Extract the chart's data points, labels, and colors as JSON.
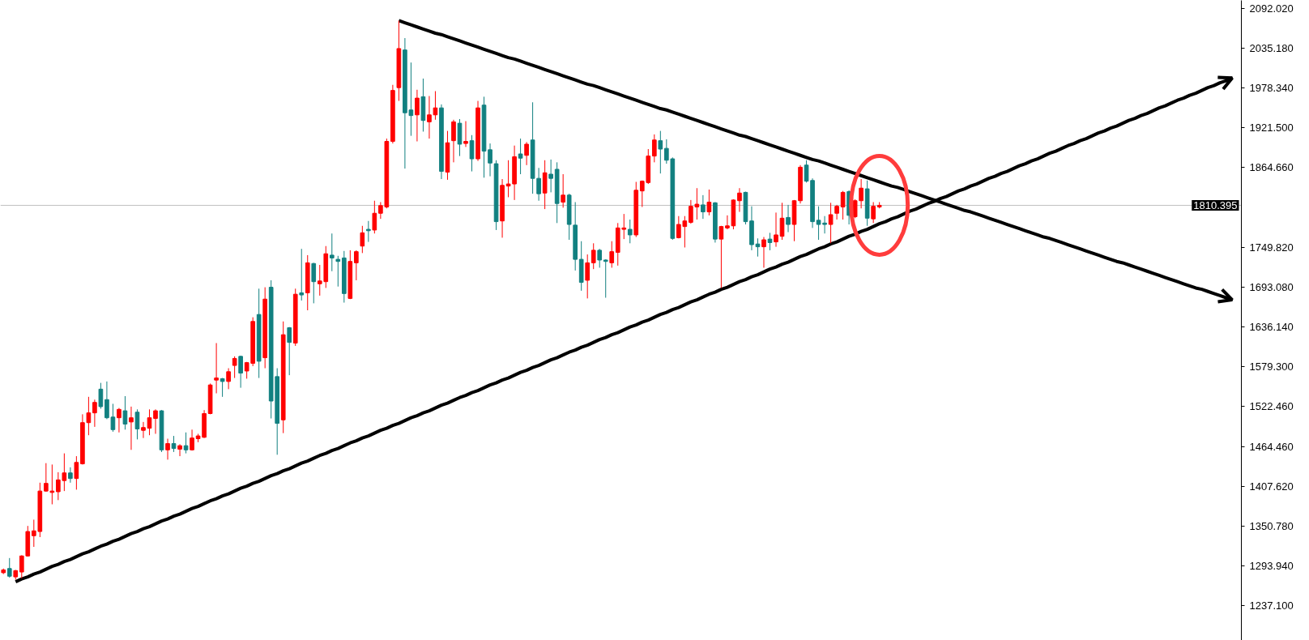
{
  "chart_data": {
    "type": "candlestick",
    "categories": [
      null,
      null,
      null,
      null,
      null,
      null,
      null,
      null,
      null,
      null,
      null,
      null,
      null,
      null,
      null,
      null,
      null,
      null,
      null,
      null,
      null,
      null,
      null,
      null,
      null,
      null,
      null,
      null,
      null,
      null,
      null,
      null,
      null,
      null,
      null,
      null,
      null,
      null,
      null,
      null,
      null,
      null,
      null,
      null,
      null,
      null,
      null,
      null,
      null,
      null,
      null,
      null,
      null,
      null,
      null,
      null,
      null,
      null,
      null,
      null,
      null,
      null,
      null,
      null,
      null,
      null,
      null,
      null,
      null,
      null,
      null,
      null,
      null,
      null,
      null,
      null,
      null,
      null,
      null,
      null,
      null,
      null,
      null,
      null,
      null,
      null,
      null,
      null,
      null,
      null,
      null,
      null,
      null,
      null,
      null,
      null,
      null,
      null,
      null,
      null,
      null,
      null,
      null,
      null,
      null,
      null,
      null,
      null,
      null,
      null,
      null,
      null,
      null,
      null,
      null,
      null,
      null,
      null,
      null,
      null,
      null,
      null,
      null,
      null,
      null,
      null,
      null,
      null,
      null,
      null,
      null,
      null,
      null,
      null,
      null,
      null,
      null,
      null,
      null,
      null,
      null,
      null,
      null,
      null,
      null,
      null,
      null,
      null,
      null,
      null,
      null,
      null,
      null,
      null,
      null,
      null,
      null,
      null,
      null,
      null,
      null,
      null,
      null,
      null,
      null,
      null,
      null,
      null,
      null,
      null,
      null,
      null,
      null,
      null,
      null,
      null,
      null,
      null,
      null,
      null,
      null,
      null,
      null,
      null,
      null,
      null,
      null,
      null,
      null,
      null,
      null,
      null,
      null,
      null,
      null,
      null,
      null,
      null,
      null,
      null,
      null,
      null,
      null,
      null
    ],
    "ohlc": [
      [
        1284,
        1290,
        1282,
        1288
      ],
      [
        1290,
        1305,
        1277,
        1279
      ],
      [
        1278,
        1288,
        1274,
        1287
      ],
      [
        1285,
        1309,
        1276,
        1308
      ],
      [
        1308,
        1351,
        1307,
        1343
      ],
      [
        1337,
        1360,
        1321,
        1344
      ],
      [
        1343,
        1413,
        1335,
        1401
      ],
      [
        1401,
        1441,
        1400,
        1412
      ],
      [
        1399,
        1439,
        1382,
        1401
      ],
      [
        1400,
        1428,
        1388,
        1417
      ],
      [
        1416,
        1455,
        1401,
        1427
      ],
      [
        1427,
        1435,
        1413,
        1419
      ],
      [
        1419,
        1451,
        1403,
        1442
      ],
      [
        1440,
        1511,
        1439,
        1499
      ],
      [
        1499,
        1536,
        1481,
        1513
      ],
      [
        1513,
        1532,
        1493,
        1528
      ],
      [
        1547,
        1556,
        1519,
        1522
      ],
      [
        1532,
        1558,
        1504,
        1506
      ],
      [
        1507,
        1526,
        1486,
        1489
      ],
      [
        1506,
        1520,
        1485,
        1518
      ],
      [
        1516,
        1537,
        1489,
        1497
      ],
      [
        1500,
        1522,
        1460,
        1506
      ],
      [
        1514,
        1518,
        1475,
        1490
      ],
      [
        1488,
        1500,
        1477,
        1492
      ],
      [
        1491,
        1518,
        1481,
        1506
      ],
      [
        1505,
        1518,
        1483,
        1516
      ],
      [
        1516,
        1517,
        1457,
        1460
      ],
      [
        1460,
        1476,
        1446,
        1469
      ],
      [
        1469,
        1480,
        1457,
        1462
      ],
      [
        1461,
        1468,
        1451,
        1466
      ],
      [
        1466,
        1485,
        1455,
        1460
      ],
      [
        1460,
        1489,
        1459,
        1477
      ],
      [
        1476,
        1483,
        1471,
        1480
      ],
      [
        1478,
        1517,
        1477,
        1512
      ],
      [
        1512,
        1555,
        1511,
        1553
      ],
      [
        1560,
        1613,
        1541,
        1563
      ],
      [
        1562,
        1563,
        1536,
        1558
      ],
      [
        1558,
        1577,
        1547,
        1572
      ],
      [
        1581,
        1594,
        1563,
        1591
      ],
      [
        1594,
        1595,
        1549,
        1570
      ],
      [
        1573,
        1586,
        1562,
        1585
      ],
      [
        1584,
        1650,
        1580,
        1644
      ],
      [
        1654,
        1691,
        1563,
        1587
      ],
      [
        1592,
        1693,
        1577,
        1676
      ],
      [
        1693,
        1703,
        1505,
        1530
      ],
      [
        1565,
        1577,
        1453,
        1498
      ],
      [
        1503,
        1644,
        1484,
        1625
      ],
      [
        1635,
        1636,
        1567,
        1614
      ],
      [
        1613,
        1691,
        1609,
        1683
      ],
      [
        1685,
        1748,
        1674,
        1682
      ],
      [
        1685,
        1739,
        1660,
        1728
      ],
      [
        1727,
        1728,
        1670,
        1701
      ],
      [
        1698,
        1725,
        1681,
        1702
      ],
      [
        1701,
        1752,
        1692,
        1741
      ],
      [
        1739,
        1770,
        1716,
        1735
      ],
      [
        1733,
        1738,
        1694,
        1730
      ],
      [
        1735,
        1745,
        1671,
        1684
      ],
      [
        1677,
        1746,
        1676,
        1730
      ],
      [
        1728,
        1746,
        1703,
        1744
      ],
      [
        1752,
        1781,
        1742,
        1771
      ],
      [
        1776,
        1788,
        1758,
        1774
      ],
      [
        1775,
        1817,
        1770,
        1799
      ],
      [
        1799,
        1815,
        1791,
        1810
      ],
      [
        1808,
        1906,
        1806,
        1902
      ],
      [
        1902,
        1983,
        1899,
        1975
      ],
      [
        1979,
        2075,
        1960,
        2035
      ],
      [
        2033,
        2050,
        1863,
        1943
      ],
      [
        1947,
        2015,
        1910,
        1939
      ],
      [
        1940,
        1976,
        1902,
        1964
      ],
      [
        1966,
        1992,
        1916,
        1932
      ],
      [
        1930,
        1967,
        1906,
        1940
      ],
      [
        1940,
        1974,
        1933,
        1950
      ],
      [
        1950,
        1955,
        1848,
        1859
      ],
      [
        1858,
        1917,
        1847,
        1900
      ],
      [
        1903,
        1933,
        1872,
        1930
      ],
      [
        1928,
        1934,
        1881,
        1898
      ],
      [
        1899,
        1931,
        1894,
        1902
      ],
      [
        1903,
        1911,
        1859,
        1877
      ],
      [
        1877,
        1960,
        1874,
        1950
      ],
      [
        1954,
        1966,
        1850,
        1888
      ],
      [
        1890,
        1899,
        1852,
        1871
      ],
      [
        1870,
        1875,
        1775,
        1787
      ],
      [
        1788,
        1848,
        1764,
        1839
      ],
      [
        1838,
        1875,
        1822,
        1841
      ],
      [
        1841,
        1896,
        1818,
        1880
      ],
      [
        1884,
        1906,
        1855,
        1878
      ],
      [
        1882,
        1901,
        1868,
        1898
      ],
      [
        1904,
        1958,
        1827,
        1849
      ],
      [
        1849,
        1864,
        1817,
        1827
      ],
      [
        1828,
        1875,
        1805,
        1857
      ],
      [
        1855,
        1876,
        1829,
        1849
      ],
      [
        1862,
        1872,
        1785,
        1813
      ],
      [
        1815,
        1855,
        1807,
        1825
      ],
      [
        1825,
        1827,
        1761,
        1783
      ],
      [
        1782,
        1815,
        1717,
        1733
      ],
      [
        1733,
        1759,
        1688,
        1700
      ],
      [
        1703,
        1740,
        1677,
        1728
      ],
      [
        1728,
        1756,
        1719,
        1746
      ],
      [
        1746,
        1748,
        1721,
        1732
      ],
      [
        1732,
        1733,
        1678,
        1730
      ],
      [
        1728,
        1759,
        1721,
        1744
      ],
      [
        1743,
        1785,
        1724,
        1778
      ],
      [
        1776,
        1798,
        1762,
        1778
      ],
      [
        1776,
        1790,
        1756,
        1768
      ],
      [
        1768,
        1844,
        1765,
        1832
      ],
      [
        1831,
        1846,
        1808,
        1845
      ],
      [
        1843,
        1891,
        1841,
        1881
      ],
      [
        1881,
        1912,
        1872,
        1904
      ],
      [
        1903,
        1917,
        1856,
        1891
      ],
      [
        1892,
        1905,
        1870,
        1875
      ],
      [
        1877,
        1879,
        1761,
        1763
      ],
      [
        1764,
        1795,
        1763,
        1783
      ],
      [
        1780,
        1795,
        1750,
        1788
      ],
      [
        1786,
        1818,
        1784,
        1809
      ],
      [
        1808,
        1835,
        1790,
        1812
      ],
      [
        1811,
        1825,
        1791,
        1801
      ],
      [
        1801,
        1833,
        1796,
        1815
      ],
      [
        1814,
        1815,
        1757,
        1762
      ],
      [
        1762,
        1781,
        1692,
        1780
      ],
      [
        1778,
        1796,
        1776,
        1781
      ],
      [
        1781,
        1819,
        1776,
        1818
      ],
      [
        1817,
        1835,
        1801,
        1828
      ],
      [
        1829,
        1830,
        1783,
        1787
      ],
      [
        1788,
        1809,
        1746,
        1754
      ],
      [
        1755,
        1763,
        1737,
        1751
      ],
      [
        1751,
        1765,
        1721,
        1761
      ],
      [
        1762,
        1771,
        1746,
        1757
      ],
      [
        1758,
        1800,
        1751,
        1768
      ],
      [
        1766,
        1814,
        1761,
        1792
      ],
      [
        1793,
        1811,
        1772,
        1783
      ],
      [
        1783,
        1818,
        1759,
        1817
      ],
      [
        1817,
        1868,
        1813,
        1865
      ],
      [
        1868,
        1875,
        1843,
        1845
      ],
      [
        1846,
        1849,
        1778,
        1787
      ],
      [
        1789,
        1809,
        1761,
        1783
      ],
      [
        1785,
        1795,
        1770,
        1783
      ],
      [
        1783,
        1814,
        1756,
        1797
      ],
      [
        1799,
        1811,
        1790,
        1809
      ],
      [
        1808,
        1831,
        1790,
        1829
      ],
      [
        1830,
        1832,
        1783,
        1796
      ],
      [
        1794,
        1819,
        1792,
        1817
      ],
      [
        1817,
        1848,
        1806,
        1835
      ],
      [
        1834,
        1846,
        1781,
        1792
      ],
      [
        1791,
        1815,
        1785,
        1809
      ],
      [
        1808,
        1815,
        1806,
        1810.4
      ],
      null,
      null,
      null,
      null,
      null,
      null,
      null,
      null,
      null,
      null,
      null,
      null,
      null,
      null,
      null,
      null,
      null,
      null,
      null,
      null,
      null,
      null,
      null,
      null,
      null,
      null,
      null,
      null,
      null,
      null,
      null,
      null,
      null,
      null,
      null,
      null,
      null,
      null,
      null,
      null,
      null,
      null,
      null,
      null,
      null,
      null,
      null,
      null,
      null,
      null,
      null,
      null,
      null,
      null,
      null,
      null,
      null,
      null,
      null
    ],
    "colors": [
      "#ff0000",
      "#128080",
      "#ff0000",
      "#ff0000",
      "#ff0000",
      "#ff0000",
      "#ff0000",
      "#ff0000",
      "#ff0000",
      "#ff0000",
      "#ff0000",
      "#128080",
      "#ff0000",
      "#ff0000",
      "#ff0000",
      "#ff0000",
      "#128080",
      "#128080",
      "#128080",
      "#ff0000",
      "#128080",
      "#ff0000",
      "#128080",
      "#ff0000",
      "#ff0000",
      "#ff0000",
      "#128080",
      "#ff0000",
      "#128080",
      "#ff0000",
      "#128080",
      "#ff0000",
      "#ff0000",
      "#ff0000",
      "#ff0000",
      "#ff0000",
      "#128080",
      "#ff0000",
      "#ff0000",
      "#128080",
      "#ff0000",
      "#ff0000",
      "#128080",
      "#ff0000",
      "#128080",
      "#128080",
      "#ff0000",
      "#128080",
      "#ff0000",
      "#128080",
      "#ff0000",
      "#128080",
      "#ff0000",
      "#ff0000",
      "#128080",
      "#128080",
      "#128080",
      "#ff0000",
      "#ff0000",
      "#ff0000",
      "#128080",
      "#ff0000",
      "#ff0000",
      "#ff0000",
      "#ff0000",
      "#ff0000",
      "#128080",
      "#128080",
      "#ff0000",
      "#128080",
      "#ff0000",
      "#ff0000",
      "#128080",
      "#ff0000",
      "#ff0000",
      "#128080",
      "#ff0000",
      "#128080",
      "#ff0000",
      "#128080",
      "#128080",
      "#128080",
      "#ff0000",
      "#ff0000",
      "#ff0000",
      "#128080",
      "#ff0000",
      "#128080",
      "#128080",
      "#ff0000",
      "#128080",
      "#128080",
      "#ff0000",
      "#128080",
      "#128080",
      "#128080",
      "#ff0000",
      "#ff0000",
      "#128080",
      "#128080",
      "#ff0000",
      "#ff0000",
      "#ff0000",
      "#128080",
      "#ff0000",
      "#ff0000",
      "#ff0000",
      "#ff0000",
      "#128080",
      "#128080",
      "#128080",
      "#ff0000",
      "#ff0000",
      "#ff0000",
      "#ff0000",
      "#128080",
      "#ff0000",
      "#128080",
      "#ff0000",
      "#ff0000",
      "#ff0000",
      "#ff0000",
      "#128080",
      "#128080",
      "#128080",
      "#ff0000",
      "#128080",
      "#ff0000",
      "#ff0000",
      "#128080",
      "#ff0000",
      "#ff0000",
      "#128080",
      "#128080",
      "#128080",
      "#128080",
      "#ff0000",
      "#ff0000",
      "#ff0000",
      "#128080",
      "#ff0000",
      "#ff0000",
      "#128080",
      "#ff0000",
      "#ff0000",
      null,
      null,
      null,
      null,
      null,
      null,
      null,
      null,
      null,
      null,
      null,
      null,
      null,
      null,
      null,
      null,
      null,
      null,
      null,
      null,
      null,
      null,
      null,
      null,
      null,
      null,
      null,
      null,
      null,
      null,
      null,
      null,
      null,
      null,
      null,
      null,
      null,
      null,
      null,
      null,
      null,
      null,
      null,
      null,
      null,
      null,
      null,
      null,
      null,
      null,
      null,
      null,
      null,
      null,
      null,
      null,
      null,
      null,
      null
    ],
    "series": [
      {
        "type": "line",
        "color": "#000000",
        "values": [
          null,
          null,
          null,
          null,
          null,
          null,
          null,
          null,
          null,
          null,
          null,
          null,
          null,
          null,
          null,
          null,
          null,
          null,
          null,
          null,
          null,
          null,
          null,
          null,
          null,
          null,
          null,
          null,
          null,
          null,
          null,
          null,
          null,
          null,
          null,
          null,
          null,
          null,
          null,
          null,
          null,
          null,
          null,
          null,
          null,
          null,
          null,
          null,
          null,
          null,
          null,
          null,
          null,
          null,
          null,
          null,
          null,
          null,
          null,
          null,
          null,
          null,
          null,
          null,
          null,
          2075,
          2072,
          2069,
          2066,
          2063,
          2060,
          2057,
          2055,
          2052,
          2049,
          2046,
          2043,
          2040,
          2037,
          2034,
          2031,
          2028,
          2025,
          2022,
          2020,
          2017,
          2014,
          2011,
          2008,
          2005,
          2002,
          1999,
          1996,
          1993,
          1990,
          1987,
          1984,
          1982,
          1979,
          1976,
          1973,
          1970,
          1967,
          1964,
          1961,
          1958,
          1955,
          1952,
          1949,
          1947,
          1944,
          1941,
          1938,
          1935,
          1932,
          1929,
          1926,
          1923,
          1920,
          1917,
          1914,
          1911,
          1909,
          1906,
          1903,
          1900,
          1897,
          1894,
          1891,
          1888,
          1885,
          1882,
          1879,
          1876,
          1874,
          1871,
          1868,
          1865,
          1862,
          1859,
          1856,
          1853,
          1850,
          1847,
          1844,
          1841,
          1838,
          1836,
          1833,
          1830,
          1827,
          1824,
          1821,
          1818,
          1815,
          1812,
          1809,
          1806,
          1803,
          1801,
          1798,
          1795,
          1792,
          1789,
          1786,
          1783,
          1780,
          1777,
          1774,
          1771,
          1768,
          1765,
          1763,
          1760,
          1757,
          1754,
          1751,
          1748,
          1745,
          1742,
          1739,
          1736,
          1733,
          1730,
          1728,
          1725,
          1722,
          1719,
          1716,
          1713,
          1710,
          1707,
          1704,
          1701,
          1698,
          1695,
          1692,
          1690,
          1687,
          1684,
          1681,
          1678,
          1675,
          null
        ]
      },
      {
        "type": "line",
        "color": "#000000",
        "values": [
          null,
          null,
          1271,
          1275,
          1278,
          1282,
          1285,
          1289,
          1293,
          1296,
          1300,
          1303,
          1307,
          1311,
          1314,
          1318,
          1322,
          1325,
          1329,
          1332,
          1336,
          1340,
          1343,
          1347,
          1350,
          1354,
          1358,
          1361,
          1365,
          1368,
          1372,
          1376,
          1379,
          1383,
          1387,
          1390,
          1394,
          1397,
          1401,
          1405,
          1408,
          1412,
          1415,
          1419,
          1423,
          1426,
          1430,
          1433,
          1437,
          1441,
          1444,
          1448,
          1452,
          1455,
          1459,
          1462,
          1466,
          1470,
          1473,
          1477,
          1480,
          1484,
          1488,
          1491,
          1495,
          1498,
          1502,
          1506,
          1509,
          1513,
          1516,
          1520,
          1524,
          1527,
          1531,
          1535,
          1538,
          1542,
          1545,
          1549,
          1553,
          1556,
          1560,
          1563,
          1567,
          1571,
          1574,
          1578,
          1581,
          1585,
          1589,
          1592,
          1596,
          1600,
          1603,
          1607,
          1610,
          1614,
          1618,
          1621,
          1625,
          1628,
          1632,
          1636,
          1639,
          1643,
          1646,
          1650,
          1654,
          1657,
          1661,
          1664,
          1668,
          1672,
          1675,
          1679,
          1683,
          1686,
          1690,
          1693,
          1697,
          1701,
          1704,
          1708,
          1711,
          1715,
          1719,
          1722,
          1726,
          1729,
          1733,
          1737,
          1740,
          1744,
          1748,
          1751,
          1755,
          1758,
          1762,
          1766,
          1769,
          1773,
          1776,
          1780,
          1784,
          1787,
          1791,
          1794,
          1798,
          1802,
          1805,
          1809,
          1813,
          1816,
          1820,
          1823,
          1827,
          1831,
          1834,
          1838,
          1841,
          1845,
          1849,
          1852,
          1856,
          1859,
          1863,
          1867,
          1870,
          1874,
          1877,
          1881,
          1885,
          1888,
          1892,
          1896,
          1899,
          1903,
          1906,
          1910,
          1914,
          1917,
          1921,
          1924,
          1928,
          1932,
          1935,
          1939,
          1942,
          1946,
          1950,
          1953,
          1957,
          1961,
          1964,
          1968,
          1971,
          1975,
          1979,
          1982,
          1986,
          1989,
          1993,
          null
        ]
      }
    ],
    "ylim": [
      1187,
      2104
    ],
    "yticks": [
      {
        "value": 2092.02,
        "label": "2092.020"
      },
      {
        "value": 2035.18,
        "label": "2035.180"
      },
      {
        "value": 1978.34,
        "label": "1978.340"
      },
      {
        "value": 1921.5,
        "label": "1921.500"
      },
      {
        "value": 1864.66,
        "label": "1864.660"
      },
      {
        "value": 1749.82,
        "label": "1749.820"
      },
      {
        "value": 1693.08,
        "label": "1693.080"
      },
      {
        "value": 1636.14,
        "label": "1636.140"
      },
      {
        "value": 1579.3,
        "label": "1579.300"
      },
      {
        "value": 1522.46,
        "label": "1522.460"
      },
      {
        "value": 1464.46,
        "label": "1464.460"
      },
      {
        "value": 1407.62,
        "label": "1407.620"
      },
      {
        "value": 1350.78,
        "label": "1350.780"
      },
      {
        "value": 1293.94,
        "label": "1293.940"
      },
      {
        "value": 1237.1,
        "label": "1237.100"
      }
    ],
    "ref_lines": [
      {
        "axis": "y",
        "value": 1810.395,
        "label": "1810.395",
        "color": "#c0c0c0"
      }
    ],
    "tick_labels": "y",
    "grid": false
  }
}
